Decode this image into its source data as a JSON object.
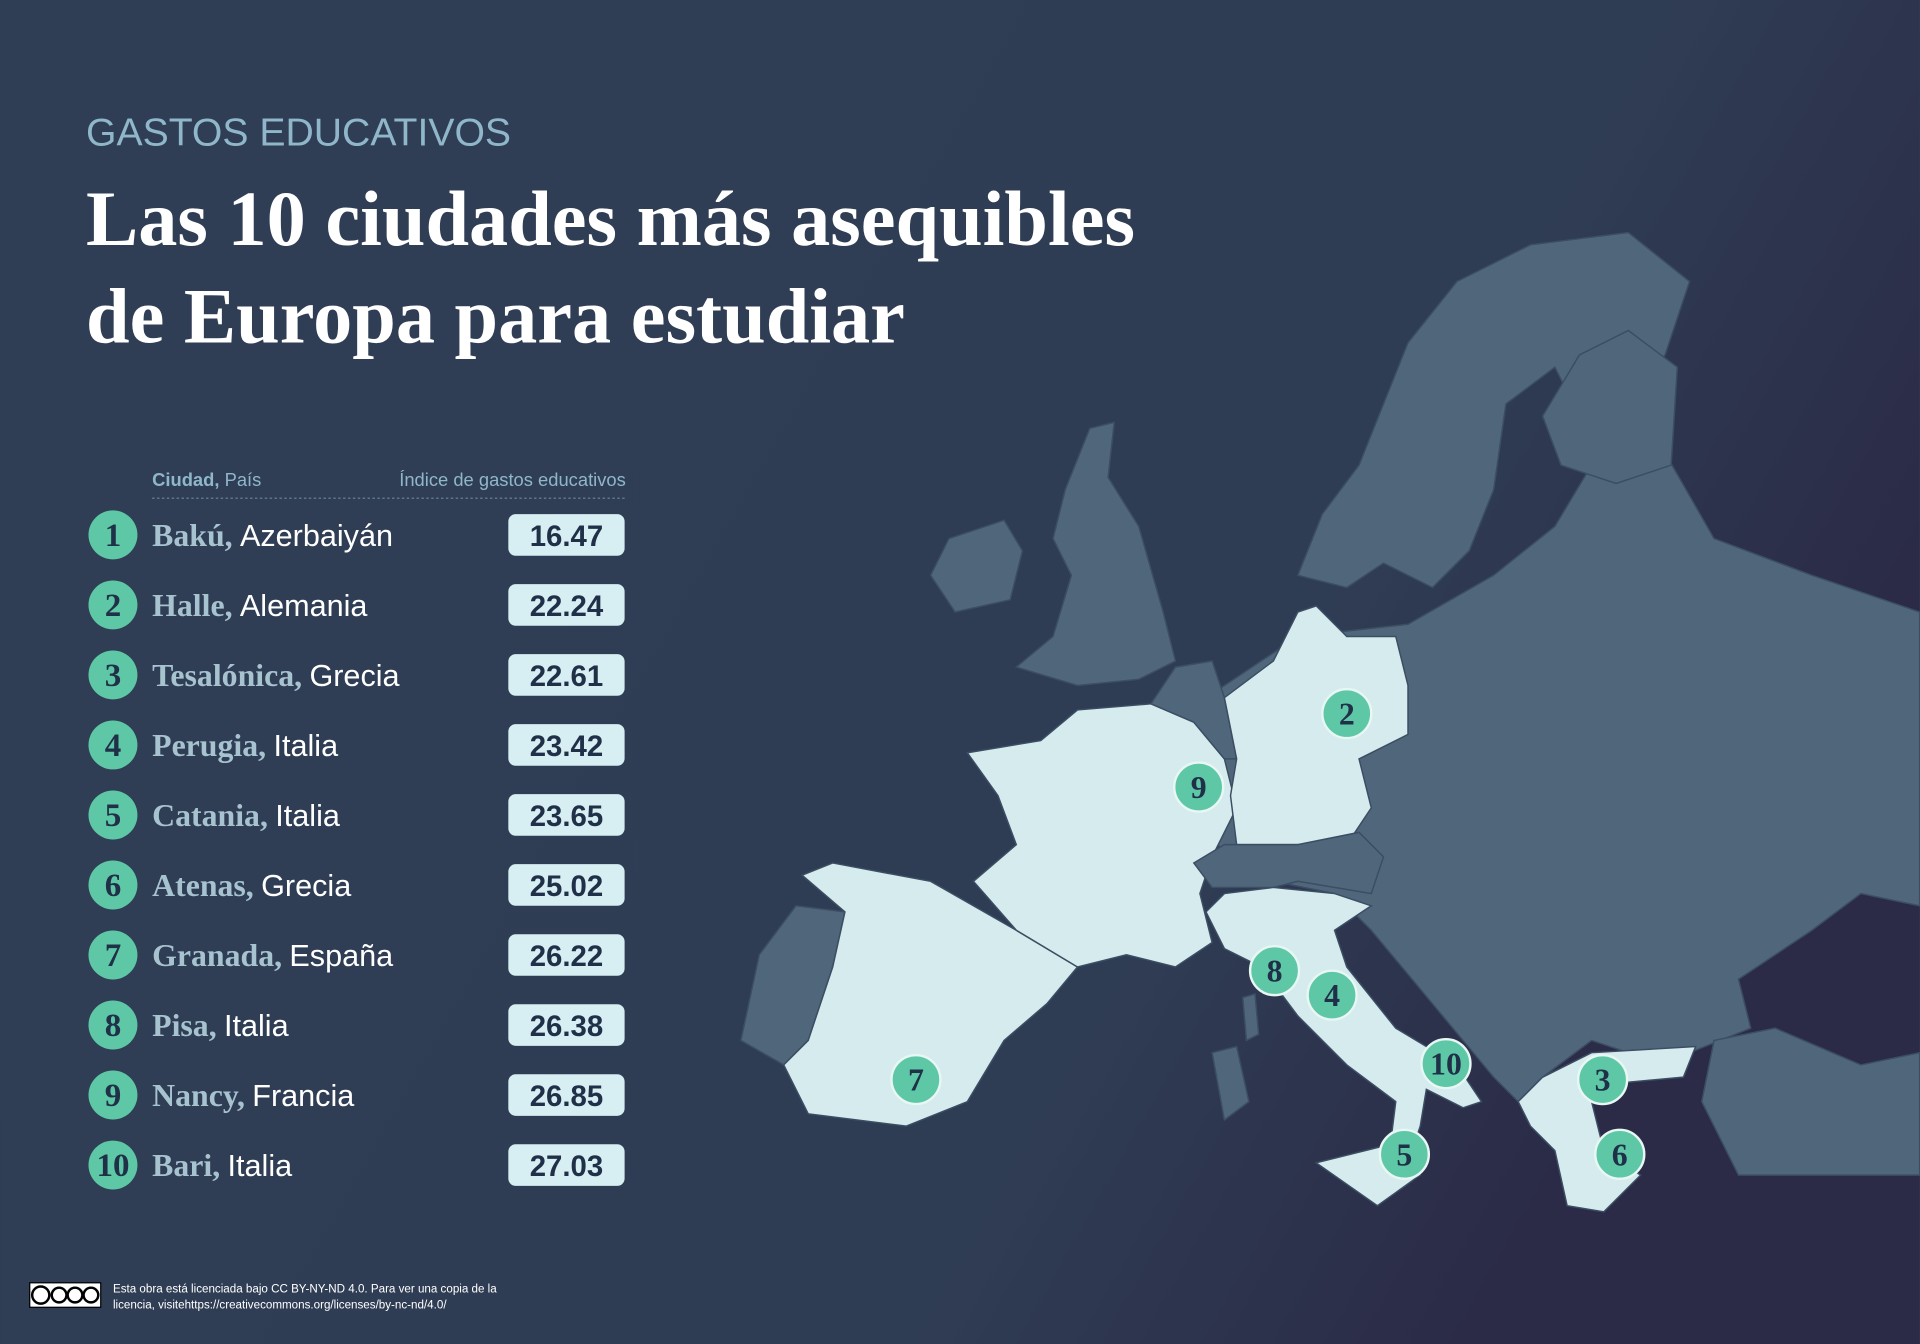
{
  "header": {
    "kicker": "GASTOS EDUCATIVOS",
    "title_lines": [
      "Las 10 ciudades más asequibles",
      "de Europa para estudiar"
    ]
  },
  "table": {
    "columns": {
      "city": "Ciudad,",
      "country": "País",
      "index": "Índice de gastos educativos"
    },
    "rows": [
      {
        "rank": "1",
        "city": "Bakú,",
        "country": "Azerbaiyán",
        "index": "16.47"
      },
      {
        "rank": "2",
        "city": "Halle,",
        "country": "Alemania",
        "index": "22.24"
      },
      {
        "rank": "3",
        "city": "Tesalónica,",
        "country": "Grecia",
        "index": "22.61"
      },
      {
        "rank": "4",
        "city": "Perugia,",
        "country": "Italia",
        "index": "23.42"
      },
      {
        "rank": "5",
        "city": "Catania,",
        "country": "Italia",
        "index": "23.65"
      },
      {
        "rank": "6",
        "city": "Atenas,",
        "country": "Grecia",
        "index": "25.02"
      },
      {
        "rank": "7",
        "city": "Granada,",
        "country": "España",
        "index": "26.22"
      },
      {
        "rank": "8",
        "city": "Pisa,",
        "country": "Italia",
        "index": "26.38"
      },
      {
        "rank": "9",
        "city": "Nancy,",
        "country": "Francia",
        "index": "26.85"
      },
      {
        "rank": "10",
        "city": "Bari,",
        "country": "Italia",
        "index": "27.03"
      }
    ]
  },
  "footer": {
    "license_lines": [
      "Esta obra está licenciada bajo CC BY-NY-ND 4.0. Para ver una copia de la",
      "licencia, visitehttps://creativecommons.org/licenses/by-nc-nd/4.0/"
    ]
  }
}
